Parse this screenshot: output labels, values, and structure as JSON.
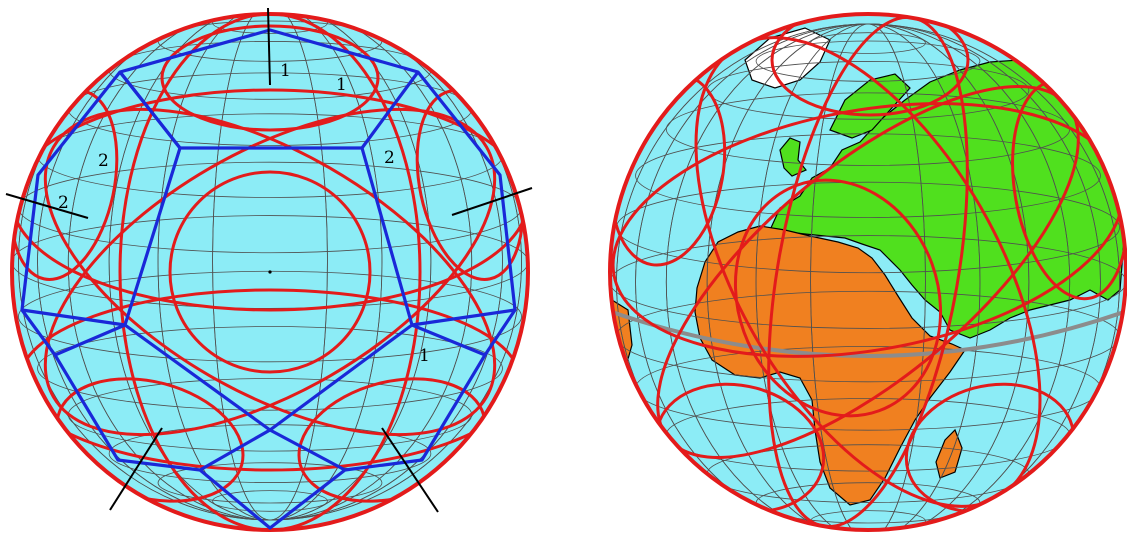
{
  "figures": [
    {
      "id": "left-globe",
      "kind": "sphere-with-dodecahedron-projection",
      "colors": {
        "sphere": "#8cecf6",
        "grid": "#505050",
        "circles": "#e31b1b",
        "polyhedron": "#1a28d8",
        "axes": "#000000"
      },
      "labels": [
        {
          "name": "label-1-top",
          "text": "1"
        },
        {
          "name": "label-1-upper-right",
          "text": "1"
        },
        {
          "name": "label-2-left",
          "text": "2"
        },
        {
          "name": "label-2-right",
          "text": "2"
        },
        {
          "name": "label-2-far-left",
          "text": "2"
        },
        {
          "name": "label-1-lower-right",
          "text": "1"
        }
      ]
    },
    {
      "id": "right-globe",
      "kind": "earth-globe-with-circle-overlay",
      "colors": {
        "ocean": "#8cecf6",
        "africa": "#f08020",
        "eurasia": "#50e01e",
        "coastline": "#000000",
        "grid": "#505050",
        "equator": "#8c8c8c",
        "circles": "#e31b1b"
      }
    }
  ]
}
